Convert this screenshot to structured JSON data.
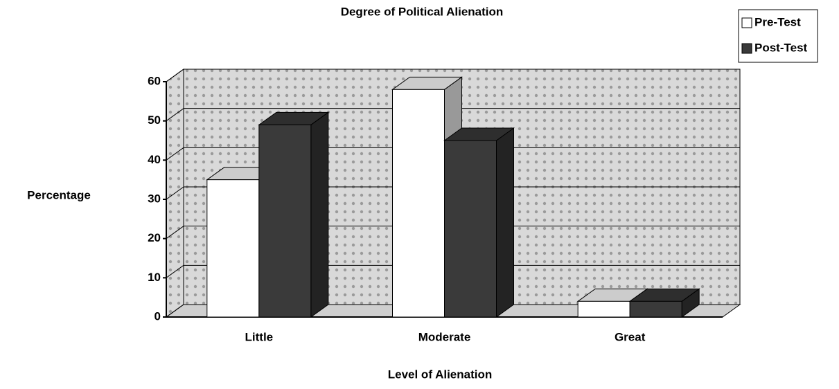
{
  "chart_data": {
    "type": "bar3d",
    "title": "Degree of Political Alienation",
    "x_label": "Level of Alienation",
    "y_label": "Percentage",
    "categories": [
      "Little",
      "Moderate",
      "Great"
    ],
    "series": [
      {
        "name": "Pre-Test",
        "color": "#ffffff",
        "values": [
          35,
          58,
          4
        ]
      },
      {
        "name": "Post-Test",
        "color": "#3a3a3a",
        "values": [
          49,
          45,
          4
        ]
      }
    ],
    "ylim": [
      0,
      60
    ],
    "yticks": [
      0,
      10,
      20,
      30,
      40,
      50,
      60
    ],
    "grid": true,
    "legend": "top-right"
  }
}
